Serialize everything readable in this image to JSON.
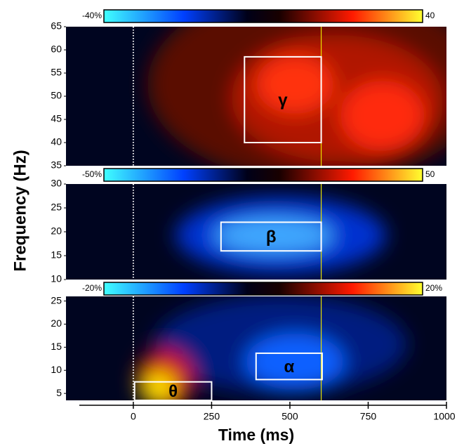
{
  "chart_data": [
    {
      "type": "heatmap",
      "colorbar": [
        {
          "value": -40,
          "label": "-40%"
        },
        40
      ],
      "xlim": [
        -215,
        1000
      ],
      "ylim": [
        35,
        65
      ],
      "yticks": [
        35,
        40,
        45,
        50,
        55,
        60,
        65
      ],
      "event_lines": [
        {
          "x": 0,
          "color": "#ffffff",
          "dashed": true
        },
        {
          "x": 600,
          "color": "#e8e000",
          "dashed": false
        }
      ],
      "boxes": [
        {
          "label": "γ",
          "x": [
            355,
            600
          ],
          "y": [
            40,
            58.5
          ]
        }
      ]
    },
    {
      "type": "heatmap",
      "ylabel": "Frequency (Hz)",
      "colorbar": [
        {
          "value": -50,
          "label": "-50%"
        },
        50
      ],
      "xlim": [
        -215,
        1000
      ],
      "ylim": [
        10,
        30
      ],
      "yticks": [
        10,
        15,
        20,
        25,
        30
      ],
      "event_lines": [
        {
          "x": 0,
          "color": "#ffffff",
          "dashed": true
        },
        {
          "x": 600,
          "color": "#e8e000",
          "dashed": false
        }
      ],
      "boxes": [
        {
          "label": "β",
          "x": [
            280,
            600
          ],
          "y": [
            16,
            22
          ]
        }
      ]
    },
    {
      "type": "heatmap",
      "xlabel": "Time (ms)",
      "colorbar": [
        {
          "value": -20,
          "label": "-20%"
        },
        {
          "value": 20,
          "label": "20%"
        }
      ],
      "xlim": [
        -215,
        1000
      ],
      "ylim": [
        3.5,
        26
      ],
      "yticks": [
        5,
        10,
        15,
        20,
        25
      ],
      "xticks": [
        0,
        250,
        500,
        750,
        1000
      ],
      "event_lines": [
        {
          "x": 0,
          "color": "#ffffff",
          "dashed": true
        },
        {
          "x": 600,
          "color": "#e8e000",
          "dashed": false
        }
      ],
      "boxes": [
        {
          "label": "α",
          "x": [
            392,
            603
          ],
          "y": [
            8,
            13.7
          ]
        },
        {
          "label": "θ",
          "x": [
            4,
            250
          ],
          "y": [
            3.5,
            7.5
          ]
        }
      ]
    }
  ]
}
